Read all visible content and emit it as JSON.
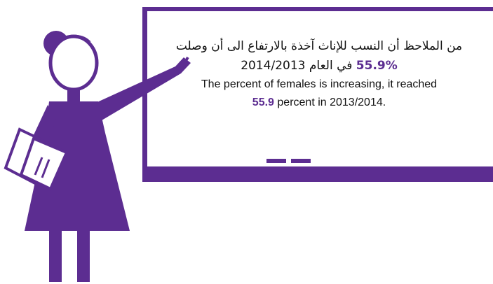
{
  "board": {
    "arabic": {
      "line1": "من الملاحظ أن النسب للإناث آخذة بالارتفاع الى أن وصلت",
      "highlight": "55.9%",
      "rest": "في العام 2014/2013"
    },
    "english": {
      "line1": "The percent of females is increasing, it reached",
      "highlight": "55.9",
      "rest": "percent in 2013/2014."
    }
  }
}
